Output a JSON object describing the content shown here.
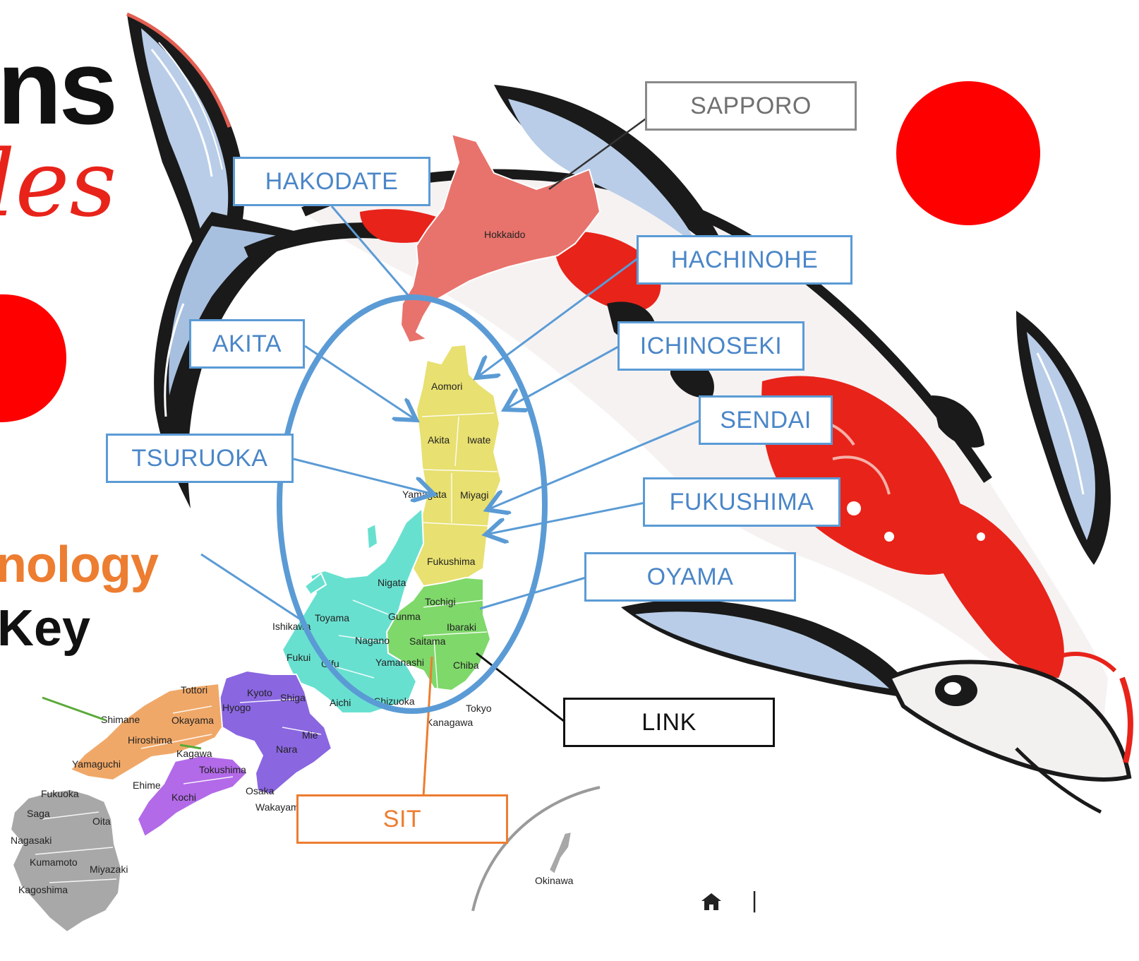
{
  "map": {
    "prefecture_labels": [
      "Hokkaido",
      "Aomori",
      "Akita",
      "Iwate",
      "Yamagata",
      "Miyagi",
      "Fukushima",
      "Nigata",
      "Tochigi",
      "Gunma",
      "Ibaraki",
      "Toyama",
      "Ishikawa",
      "Nagano",
      "Saitama",
      "Fukui",
      "Gifu",
      "Yamanashi",
      "Chiba",
      "Tottori",
      "Kyoto",
      "Shiga",
      "Aichi",
      "Shizuoka",
      "Tokyo",
      "Kanagawa",
      "Shimane",
      "Okayama",
      "Hyogo",
      "Hiroshima",
      "Mie",
      "Kagawa",
      "Nara",
      "Yamaguchi",
      "Tokushima",
      "Ehime",
      "Osaka",
      "Kochi",
      "Wakayama",
      "Fukuoka",
      "Saga",
      "Oita",
      "Nagasaki",
      "Kumamoto",
      "Miyazaki",
      "Kagoshima",
      "Okinawa"
    ],
    "region_colors": {
      "hokkaido": "#e8736c",
      "tohoku": "#e8e070",
      "kanto": "#7fd86a",
      "chubu": "#68e0d0",
      "kansai": "#8a66e0",
      "chugoku": "#f0a868",
      "shikoku": "#b26ae8",
      "kyushu": "#a8a8a8"
    }
  },
  "callouts": {
    "sapporo": "SAPPORO",
    "hakodate": "HAKODATE",
    "hachinohe": "HACHINOHE",
    "akita": "AKITA",
    "ichinoseki": "ICHINOSEKI",
    "sendai": "SENDAI",
    "tsuruoka": "TSURUOKA",
    "fukushima": "FUKUSHIMA",
    "oyama": "OYAMA",
    "link": "LINK",
    "sit": "SIT"
  },
  "partial_title": {
    "line1": "ns",
    "line2": "les",
    "line3": "nology",
    "line4": "Key"
  },
  "nav": {
    "home_icon": "home-icon",
    "separator": "|"
  }
}
